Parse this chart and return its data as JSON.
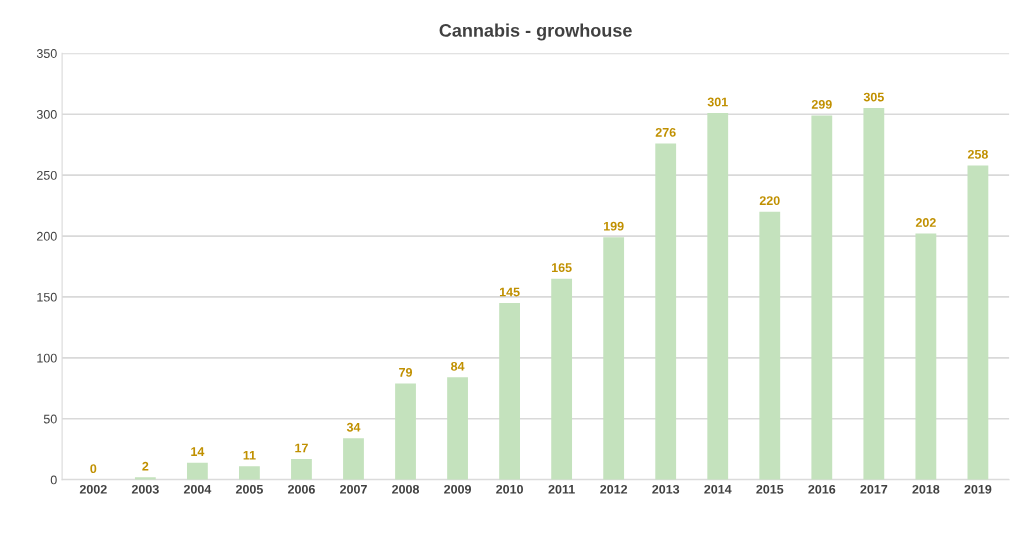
{
  "chart_data": {
    "type": "bar",
    "title": "Cannabis - growhouse",
    "categories": [
      "2002",
      "2003",
      "2004",
      "2005",
      "2006",
      "2007",
      "2008",
      "2009",
      "2010",
      "2011",
      "2012",
      "2013",
      "2014",
      "2015",
      "2016",
      "2017",
      "2018",
      "2019"
    ],
    "values": [
      0,
      2,
      14,
      11,
      17,
      34,
      79,
      84,
      145,
      165,
      199,
      276,
      301,
      220,
      299,
      305,
      202,
      258
    ],
    "color": "#c4e2bd",
    "data_labels": true,
    "ylim": [
      0,
      350
    ],
    "yticks": [
      0,
      50,
      100,
      150,
      200,
      250,
      300,
      350
    ],
    "grid": "y"
  }
}
